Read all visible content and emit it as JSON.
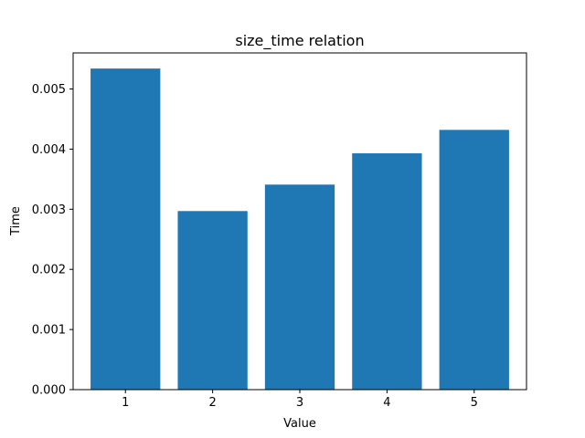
{
  "chart_data": {
    "type": "bar",
    "title": "size_time relation",
    "xlabel": "Value",
    "ylabel": "Time",
    "categories": [
      "1",
      "2",
      "3",
      "4",
      "5"
    ],
    "x": [
      1,
      2,
      3,
      4,
      5
    ],
    "values": [
      0.00534,
      0.00297,
      0.00341,
      0.00393,
      0.00432
    ],
    "xlim": [
      0.4,
      5.6
    ],
    "ylim": [
      0,
      0.0056
    ],
    "yticks": [
      0.0,
      0.001,
      0.002,
      0.003,
      0.004,
      0.005
    ],
    "ytick_labels": [
      "0.000",
      "0.001",
      "0.002",
      "0.003",
      "0.004",
      "0.005"
    ],
    "grid": false,
    "colors": {
      "bar": "#1f77b4",
      "axes": "#000000",
      "background": "#ffffff"
    }
  }
}
